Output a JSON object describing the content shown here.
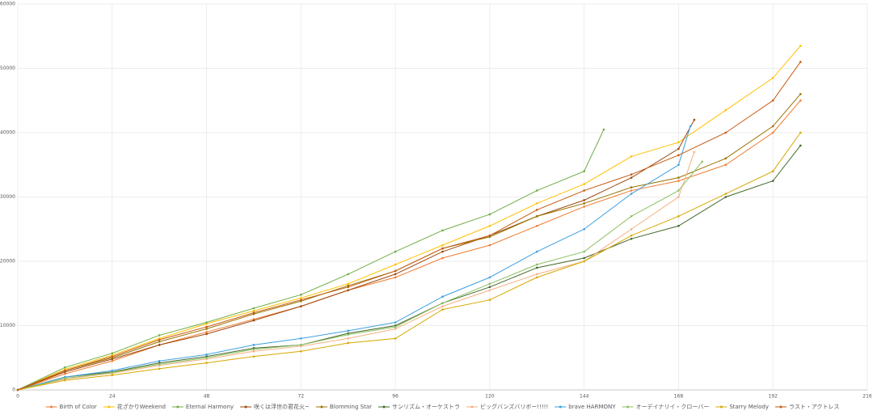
{
  "chart_data": {
    "type": "line",
    "xlim": [
      0,
      216
    ],
    "xticks": [
      0,
      24,
      48,
      72,
      96,
      120,
      144,
      168,
      192,
      216
    ],
    "ylim": [
      0,
      60000
    ],
    "yticks": [
      0,
      10000,
      20000,
      30000,
      40000,
      50000,
      60000
    ],
    "grid": true,
    "legend": "bottom",
    "series": [
      {
        "name": "Birth of Color",
        "color": "#ed7d31",
        "x": [
          0,
          12,
          24,
          36,
          48,
          60,
          72,
          84,
          96,
          108,
          120,
          132,
          144,
          156,
          168,
          180,
          192,
          199
        ],
        "values": [
          0,
          2500,
          4500,
          7000,
          9000,
          11000,
          13000,
          15500,
          17500,
          20500,
          22500,
          25500,
          28500,
          31000,
          32500,
          35000,
          40000,
          45000
        ]
      },
      {
        "name": "花ざかりWeekend",
        "color": "#ffc000",
        "x": [
          0,
          12,
          24,
          36,
          48,
          60,
          72,
          84,
          96,
          108,
          120,
          132,
          144,
          156,
          168,
          180,
          192,
          199
        ],
        "values": [
          0,
          3200,
          5400,
          8000,
          10300,
          12300,
          14300,
          16500,
          19500,
          22500,
          25500,
          29000,
          32000,
          36300,
          38500,
          43500,
          48500,
          53500
        ]
      },
      {
        "name": "Eternal Harmony",
        "color": "#70ad47",
        "x": [
          0,
          12,
          24,
          36,
          48,
          60,
          72,
          84,
          96,
          108,
          120,
          132,
          144,
          149
        ],
        "values": [
          0,
          3500,
          5700,
          8500,
          10500,
          12700,
          14800,
          18000,
          21500,
          24800,
          27300,
          31000,
          34000,
          40500
        ]
      },
      {
        "name": "咲くは浮世の君花火~",
        "color": "#9e480e",
        "x": [
          0,
          12,
          24,
          36,
          48,
          60,
          72,
          84,
          96,
          108,
          120,
          132,
          144,
          156,
          168,
          172
        ],
        "values": [
          0,
          2800,
          4800,
          7000,
          8700,
          10800,
          13000,
          15500,
          18000,
          21500,
          24000,
          27000,
          29500,
          33000,
          37500,
          42000
        ]
      },
      {
        "name": "Blomming Star",
        "color": "#997300",
        "x": [
          0,
          12,
          24,
          36,
          48,
          60,
          72,
          84,
          96,
          108,
          120,
          132,
          144,
          156,
          168,
          180,
          192,
          199
        ],
        "values": [
          0,
          3000,
          5000,
          7500,
          9500,
          11800,
          13800,
          16200,
          18500,
          22000,
          23800,
          27000,
          29000,
          31500,
          33000,
          36000,
          41000,
          46000
        ]
      },
      {
        "name": "サンリズム・オーケストラ",
        "color": "#43682b",
        "x": [
          0,
          12,
          24,
          36,
          48,
          60,
          72,
          84,
          96,
          108,
          120,
          132,
          144,
          156,
          168,
          180,
          192,
          199
        ],
        "values": [
          0,
          2000,
          2800,
          4200,
          5200,
          6500,
          7000,
          8800,
          10000,
          13500,
          16000,
          19000,
          20500,
          23500,
          25500,
          30000,
          32500,
          38000
        ]
      },
      {
        "name": "ビッグバンズバリボー!!!!!",
        "color": "#f4b183",
        "x": [
          0,
          12,
          24,
          36,
          48,
          60,
          72,
          84,
          96,
          108,
          120,
          132,
          144,
          156,
          168,
          172
        ],
        "values": [
          0,
          1700,
          2600,
          3800,
          4800,
          6000,
          6800,
          8000,
          9500,
          13000,
          15500,
          18000,
          20000,
          25000,
          30000,
          37000
        ]
      },
      {
        "name": "brave HARMONY",
        "color": "#3fa0e0",
        "x": [
          0,
          12,
          24,
          36,
          48,
          60,
          72,
          84,
          96,
          108,
          120,
          132,
          144,
          156,
          168,
          171
        ],
        "values": [
          0,
          2000,
          3000,
          4500,
          5500,
          7000,
          8000,
          9200,
          10500,
          14500,
          17500,
          21500,
          25000,
          30500,
          35000,
          41000
        ]
      },
      {
        "name": "オーデイナリイ・クローバー",
        "color": "#8cc063",
        "x": [
          0,
          12,
          24,
          36,
          48,
          60,
          72,
          84,
          96,
          108,
          120,
          132,
          144,
          156,
          168,
          174
        ],
        "values": [
          0,
          1800,
          2700,
          4000,
          5000,
          6300,
          7000,
          8600,
          9800,
          13500,
          16500,
          19500,
          21500,
          27000,
          31000,
          35500
        ]
      },
      {
        "name": "Starry Melody",
        "color": "#d6a800",
        "x": [
          0,
          12,
          24,
          36,
          48,
          60,
          72,
          84,
          96,
          108,
          120,
          132,
          144,
          156,
          168,
          180,
          192,
          199
        ],
        "values": [
          0,
          1500,
          2300,
          3300,
          4200,
          5200,
          6000,
          7300,
          8000,
          12500,
          14000,
          17500,
          20000,
          24000,
          27000,
          30500,
          34000,
          40000
        ]
      },
      {
        "name": "ラスト・アクトレス",
        "color": "#c55a11",
        "x": [
          0,
          12,
          24,
          36,
          48,
          60,
          72,
          84,
          96,
          108,
          120,
          132,
          144,
          156,
          168,
          180,
          192,
          199
        ],
        "values": [
          0,
          3000,
          5200,
          7800,
          9800,
          12000,
          14000,
          16000,
          18500,
          22000,
          24000,
          28000,
          31000,
          33500,
          36500,
          40000,
          45000,
          51000
        ]
      }
    ]
  }
}
